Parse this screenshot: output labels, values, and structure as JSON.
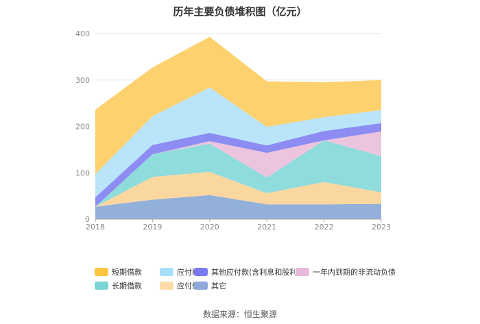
{
  "title": "历年主要负债堆积图（亿元）",
  "source": "数据来源：恒生聚源",
  "chart_data": {
    "type": "area",
    "stacked": true,
    "title": "历年主要负债堆积图（亿元）",
    "x": [
      "2018",
      "2019",
      "2020",
      "2021",
      "2022",
      "2023"
    ],
    "ylim": [
      0,
      400
    ],
    "yticks": [
      "0",
      "100",
      "200",
      "300",
      "400"
    ],
    "grid": true,
    "legend_position": "bottom",
    "series": [
      {
        "name": "其它",
        "color": "#93b0db",
        "values": [
          27,
          42,
          52,
          32,
          32,
          33
        ]
      },
      {
        "name": "应付债券",
        "color": "#fbd7a0",
        "values": [
          0,
          49,
          50,
          24,
          48,
          25
        ]
      },
      {
        "name": "长期借款",
        "color": "#8fdcdc",
        "values": [
          0,
          49,
          61,
          34,
          90,
          78
        ]
      },
      {
        "name": "一年内到期的非流动负债",
        "color": "#ecc4de",
        "values": [
          0,
          0,
          5,
          53,
          0,
          53
        ]
      },
      {
        "name": "其他应付款(含利息和股利)",
        "color": "#8c8cf2",
        "values": [
          20,
          20,
          18,
          16,
          20,
          18
        ]
      },
      {
        "name": "应付账款",
        "color": "#b9e4f9",
        "values": [
          50,
          62,
          98,
          40,
          30,
          28
        ]
      },
      {
        "name": "短期借款",
        "color": "#fdd26e",
        "values": [
          139,
          105,
          109,
          98,
          75,
          65
        ]
      }
    ],
    "legend": [
      {
        "name": "短期借款",
        "color": "#fcc643"
      },
      {
        "name": "应付账款",
        "color": "#a9defa"
      },
      {
        "name": "其他应付款(含利息和股利)",
        "color": "#7b7bf0"
      },
      {
        "name": "一年内到期的非流动负债",
        "color": "#e8b9d9"
      },
      {
        "name": "长期借款",
        "color": "#7dd6d6"
      },
      {
        "name": "应付债券",
        "color": "#fddca8"
      },
      {
        "name": "其它",
        "color": "#8ea9d9"
      }
    ]
  }
}
